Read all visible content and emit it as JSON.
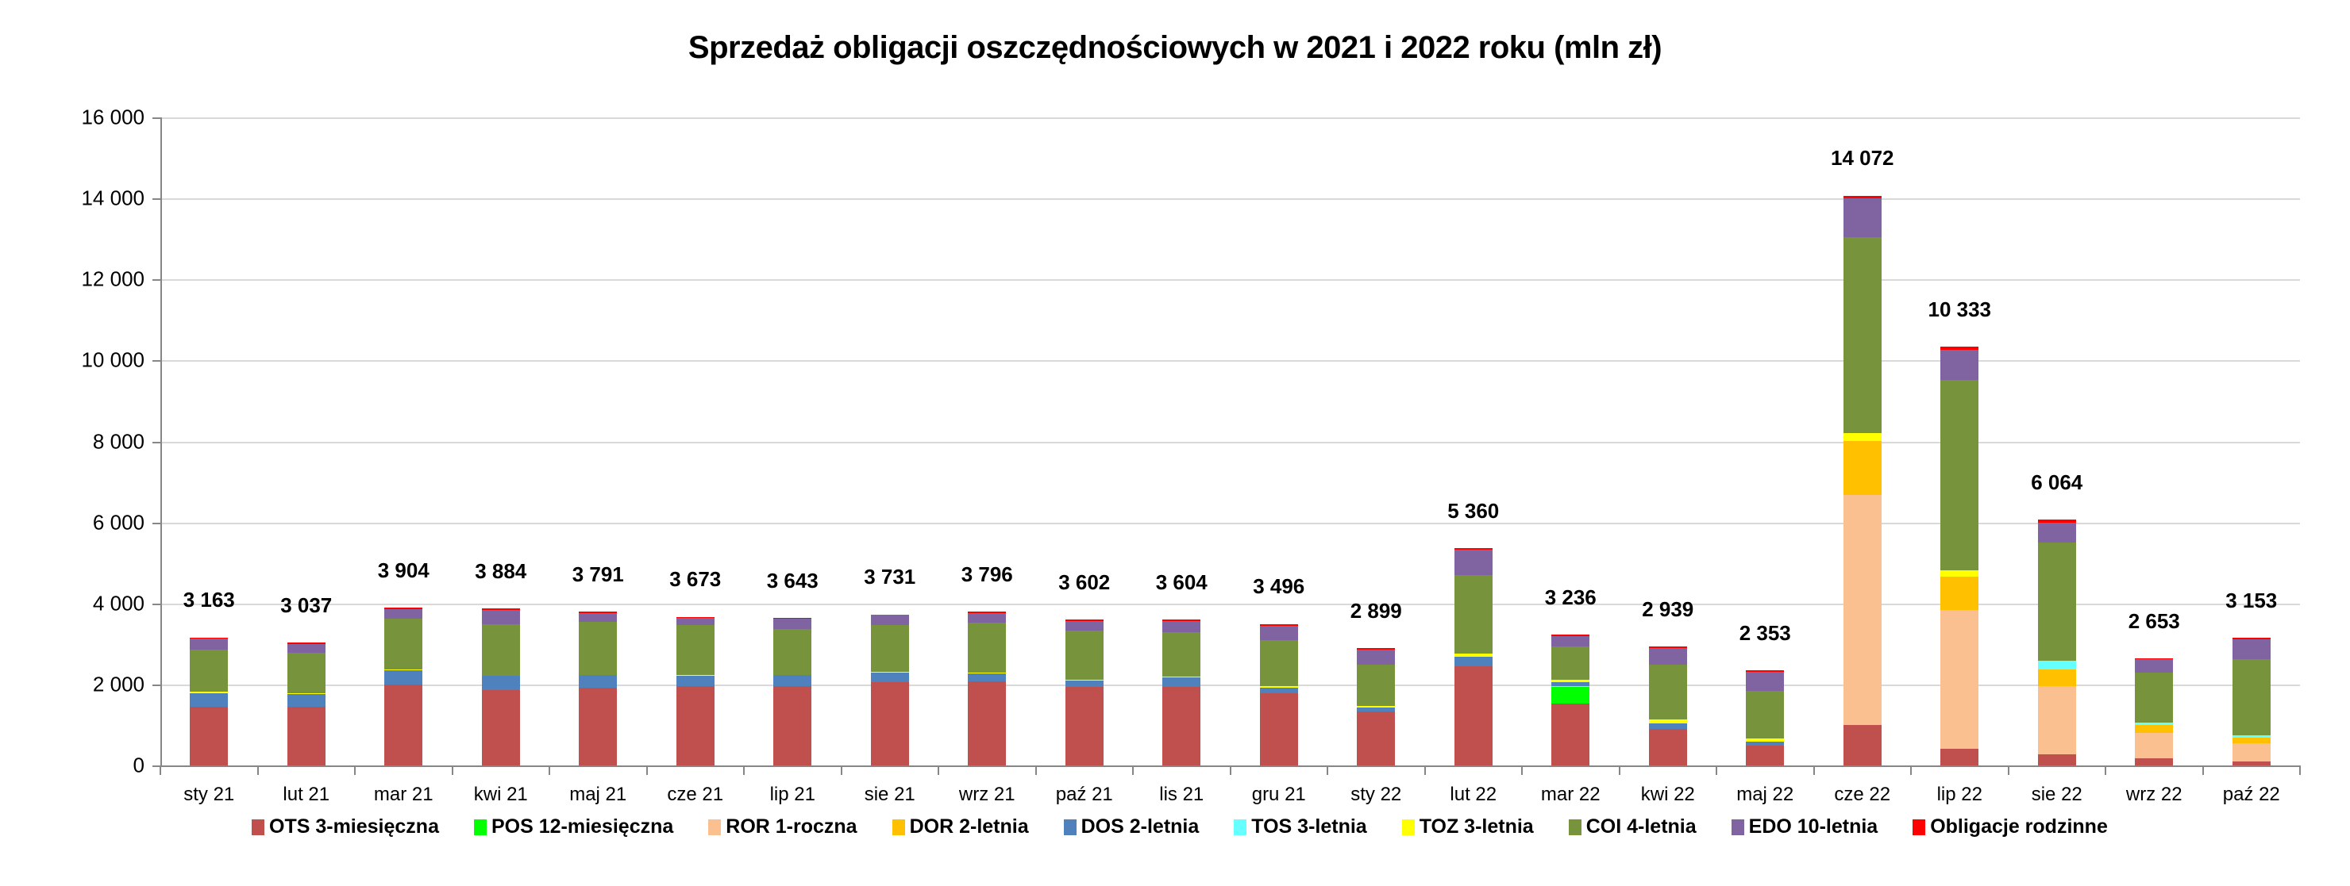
{
  "chart_data": {
    "type": "bar",
    "stacked": true,
    "title": "Sprzedaż obligacji oszczędnościowych w 2021 i 2022 roku (mln zł)",
    "xlabel": "",
    "ylabel": "",
    "ylim": [
      0,
      16000
    ],
    "yticks": [
      0,
      2000,
      4000,
      6000,
      8000,
      10000,
      12000,
      14000,
      16000
    ],
    "ytick_labels": [
      "0",
      "2 000",
      "4 000",
      "6 000",
      "8 000",
      "10 000",
      "12 000",
      "14 000",
      "16 000"
    ],
    "grid": true,
    "legend_position": "bottom",
    "categories": [
      "sty 21",
      "lut 21",
      "mar 21",
      "kwi 21",
      "maj 21",
      "cze 21",
      "lip 21",
      "sie 21",
      "wrz 21",
      "paź 21",
      "lis 21",
      "gru 21",
      "sty 22",
      "lut 22",
      "mar 22",
      "kwi 22",
      "maj 22",
      "cze 22",
      "lip 22",
      "sie 22",
      "wrz 22",
      "paź 22"
    ],
    "totals": [
      3163,
      3037,
      3904,
      3884,
      3791,
      3673,
      3643,
      3731,
      3796,
      3602,
      3604,
      3496,
      2899,
      5360,
      3236,
      2939,
      2353,
      14072,
      10333,
      6064,
      2653,
      3153
    ],
    "total_labels": [
      "3 163",
      "3 037",
      "3 904",
      "3 884",
      "3 791",
      "3 673",
      "3 643",
      "3 731",
      "3 796",
      "3 602",
      "3 604",
      "3 496",
      "2 899",
      "5 360",
      "3 236",
      "2 939",
      "2 353",
      "14 072",
      "10 333",
      "6 064",
      "2 653",
      "3 153"
    ],
    "series": [
      {
        "name": "OTS 3-miesięczna",
        "color": "#C0504D",
        "values": [
          1452,
          1452,
          2001,
          1864,
          1929,
          1962,
          1962,
          2060,
          2080,
          1942,
          1942,
          1785,
          1323,
          2456,
          1520,
          904,
          494,
          997,
          405,
          267,
          178,
          98
        ]
      },
      {
        "name": "POS 12-miesięczna",
        "color": "#00FF00",
        "values": [
          0,
          0,
          0,
          0,
          0,
          0,
          0,
          0,
          0,
          0,
          0,
          0,
          0,
          0,
          425,
          0,
          0,
          0,
          0,
          0,
          0,
          0
        ]
      },
      {
        "name": "ROR 1-roczna",
        "color": "#FAC090",
        "values": [
          0,
          0,
          0,
          0,
          0,
          0,
          0,
          0,
          0,
          0,
          0,
          0,
          0,
          0,
          10,
          0,
          0,
          5689,
          3427,
          1688,
          622,
          453
        ]
      },
      {
        "name": "DOR 2-letnia",
        "color": "#FFC000",
        "values": [
          0,
          0,
          0,
          0,
          0,
          0,
          0,
          0,
          0,
          0,
          0,
          0,
          0,
          0,
          0,
          0,
          0,
          1333,
          839,
          415,
          197,
          138
        ]
      },
      {
        "name": "DOS 2-letnia",
        "color": "#4F81BD",
        "values": [
          340,
          307,
          347,
          353,
          308,
          242,
          262,
          222,
          196,
          158,
          236,
          138,
          111,
          236,
          99,
          137,
          89,
          0,
          0,
          0,
          0,
          0
        ]
      },
      {
        "name": "TOS 3-letnia",
        "color": "#66FFFF",
        "values": [
          0,
          0,
          0,
          0,
          0,
          0,
          0,
          0,
          0,
          0,
          0,
          0,
          0,
          0,
          0,
          0,
          0,
          0,
          0,
          218,
          60,
          65
        ]
      },
      {
        "name": "TOZ 3-letnia",
        "color": "#FFFF00",
        "values": [
          20,
          20,
          20,
          0,
          0,
          20,
          15,
          20,
          20,
          20,
          15,
          35,
          40,
          79,
          59,
          99,
          89,
          178,
          139,
          0,
          0,
          0
        ]
      },
      {
        "name": "COI 4-letnia",
        "color": "#77933C",
        "values": [
          1053,
          1007,
          1262,
          1275,
          1314,
          1249,
          1136,
          1171,
          1236,
          1216,
          1103,
          1142,
          1022,
          1925,
          835,
          1356,
          1165,
          4839,
          4701,
          2923,
          1234,
          1862
        ]
      },
      {
        "name": "EDO 10-letnia",
        "color": "#8064A2",
        "values": [
          274,
          216,
          235,
          354,
          216,
          177,
          242,
          242,
          235,
          235,
          275,
          353,
          373,
          636,
          255,
          412,
          484,
          968,
          750,
          484,
          326,
          492
        ]
      },
      {
        "name": "Obligacje rodzinne",
        "color": "#FF0000",
        "values": [
          24,
          35,
          39,
          38,
          24,
          23,
          26,
          16,
          29,
          31,
          33,
          43,
          30,
          28,
          33,
          31,
          32,
          68,
          72,
          69,
          36,
          45
        ]
      }
    ]
  }
}
